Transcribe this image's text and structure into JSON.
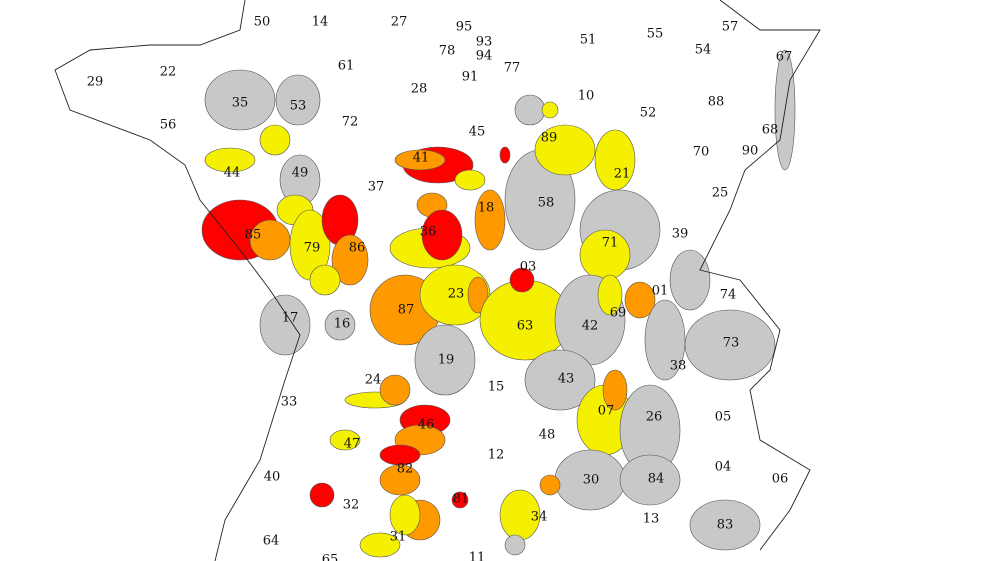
{
  "map": {
    "colors": {
      "background": "#ffffff",
      "no_restriction": "#ffffff",
      "vigilance": "#c8c8c8",
      "alerte": "#f5ef00",
      "alerte_renforcee": "#ff9900",
      "crise": "#ff0000",
      "border": "#222222"
    },
    "departments": [
      "50",
      "14",
      "27",
      "95",
      "93",
      "94",
      "78",
      "91",
      "77",
      "51",
      "55",
      "57",
      "54",
      "67",
      "29",
      "22",
      "61",
      "28",
      "10",
      "52",
      "88",
      "68",
      "35",
      "53",
      "72",
      "45",
      "89",
      "70",
      "90",
      "56",
      "44",
      "49",
      "37",
      "41",
      "21",
      "25",
      "18",
      "58",
      "39",
      "85",
      "79",
      "86",
      "36",
      "71",
      "03",
      "01",
      "74",
      "17",
      "16",
      "87",
      "23",
      "63",
      "42",
      "69",
      "73",
      "38",
      "19",
      "24",
      "15",
      "43",
      "33",
      "07",
      "26",
      "05",
      "46",
      "47",
      "48",
      "12",
      "04",
      "06",
      "40",
      "82",
      "30",
      "84",
      "81",
      "32",
      "34",
      "13",
      "83",
      "64",
      "31",
      "11",
      "65"
    ]
  }
}
